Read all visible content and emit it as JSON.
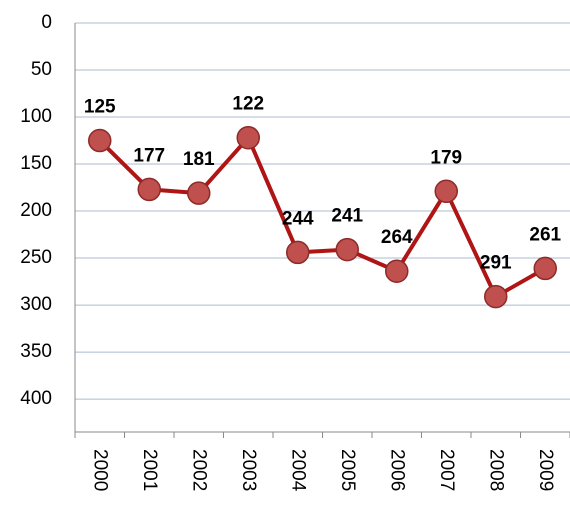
{
  "chart_data": {
    "type": "line",
    "categories": [
      "2000",
      "2001",
      "2002",
      "2003",
      "2004",
      "2005",
      "2006",
      "2007",
      "2008",
      "2009"
    ],
    "series": [
      {
        "color": "#b01515",
        "marker_color": "#c0504d",
        "values": [
          125,
          177,
          181,
          122,
          244,
          241,
          264,
          179,
          291,
          261
        ]
      }
    ],
    "ylim": [
      0,
      435
    ],
    "yticks": [
      0,
      50,
      100,
      150,
      200,
      250,
      300,
      350,
      400
    ],
    "y_inverted": true,
    "grid": true
  }
}
